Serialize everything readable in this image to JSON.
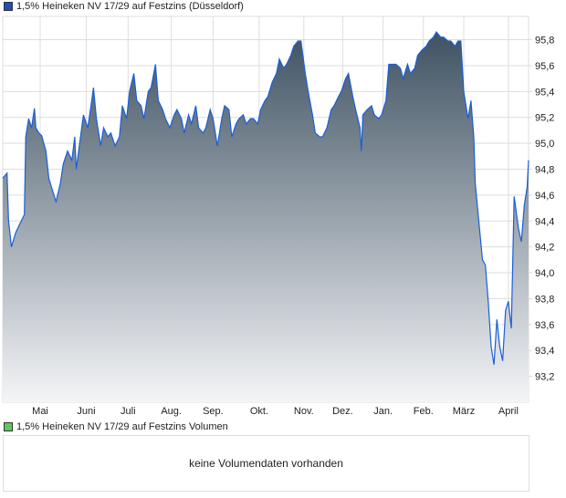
{
  "legend_main": {
    "label": "1,5% Heineken NV 17/29 auf Festzins (Düsseldorf)",
    "color": "#1f50b0"
  },
  "legend_volume": {
    "label": "1,5% Heineken NV 17/29 auf Festzins Volumen",
    "color": "#5cc85c"
  },
  "volume_message": "keine Volumendaten vorhanden",
  "colors": {
    "line": "#1a5fd8",
    "fill_top": "#3f5262",
    "fill_bottom": "#f4f5f7",
    "grid": "#dddddd"
  },
  "chart_data": {
    "type": "area",
    "title": "1,5% Heineken NV 17/29 auf Festzins (Düsseldorf)",
    "xlabel": "",
    "ylabel": "",
    "x_unit": "days since start",
    "xlim": [
      0,
      365
    ],
    "ylim": [
      93.0,
      95.98
    ],
    "grid": true,
    "y_ticks": [
      93.2,
      93.4,
      93.6,
      93.8,
      94.0,
      94.2,
      94.4,
      94.6,
      94.8,
      95.0,
      95.2,
      95.4,
      95.6,
      95.8
    ],
    "y_tick_labels": [
      "93,2",
      "93,4",
      "93,6",
      "93,8",
      "94,0",
      "94,2",
      "94,4",
      "94,6",
      "94,8",
      "95,0",
      "95,2",
      "95,4",
      "95,6",
      "95,8"
    ],
    "x_ticks": [
      {
        "label": "Mai",
        "day": 26
      },
      {
        "label": "Juni",
        "day": 58
      },
      {
        "label": "Juli",
        "day": 87
      },
      {
        "label": "Aug.",
        "day": 117
      },
      {
        "label": "Sep.",
        "day": 146
      },
      {
        "label": "Okt.",
        "day": 178
      },
      {
        "label": "Nov.",
        "day": 209
      },
      {
        "label": "Dez.",
        "day": 236
      },
      {
        "label": "Jan.",
        "day": 264
      },
      {
        "label": "Feb.",
        "day": 292
      },
      {
        "label": "März",
        "day": 320
      },
      {
        "label": "April",
        "day": 351
      }
    ],
    "points": [
      [
        0,
        94.73
      ],
      [
        3,
        94.77
      ],
      [
        4,
        94.41
      ],
      [
        6,
        94.2
      ],
      [
        9,
        94.31
      ],
      [
        12,
        94.38
      ],
      [
        15,
        94.45
      ],
      [
        16,
        95.05
      ],
      [
        18,
        95.19
      ],
      [
        20,
        95.12
      ],
      [
        22,
        95.27
      ],
      [
        23,
        95.12
      ],
      [
        25,
        95.08
      ],
      [
        27,
        95.06
      ],
      [
        30,
        94.94
      ],
      [
        32,
        94.73
      ],
      [
        35,
        94.62
      ],
      [
        37,
        94.55
      ],
      [
        40,
        94.69
      ],
      [
        42,
        94.84
      ],
      [
        45,
        94.94
      ],
      [
        48,
        94.87
      ],
      [
        50,
        95.05
      ],
      [
        51,
        94.8
      ],
      [
        54,
        95.05
      ],
      [
        56,
        95.22
      ],
      [
        59,
        95.12
      ],
      [
        61,
        95.27
      ],
      [
        63,
        95.43
      ],
      [
        65,
        95.19
      ],
      [
        68,
        94.98
      ],
      [
        70,
        95.12
      ],
      [
        73,
        95.05
      ],
      [
        75,
        95.08
      ],
      [
        78,
        94.98
      ],
      [
        81,
        95.05
      ],
      [
        83,
        95.29
      ],
      [
        86,
        95.19
      ],
      [
        88,
        95.4
      ],
      [
        91,
        95.54
      ],
      [
        93,
        95.33
      ],
      [
        96,
        95.29
      ],
      [
        98,
        95.19
      ],
      [
        101,
        95.4
      ],
      [
        103,
        95.43
      ],
      [
        106,
        95.61
      ],
      [
        108,
        95.33
      ],
      [
        111,
        95.26
      ],
      [
        113,
        95.19
      ],
      [
        116,
        95.12
      ],
      [
        119,
        95.22
      ],
      [
        121,
        95.26
      ],
      [
        124,
        95.19
      ],
      [
        126,
        95.08
      ],
      [
        129,
        95.22
      ],
      [
        131,
        95.15
      ],
      [
        134,
        95.29
      ],
      [
        136,
        95.12
      ],
      [
        139,
        95.08
      ],
      [
        141,
        95.12
      ],
      [
        144,
        95.26
      ],
      [
        146,
        95.19
      ],
      [
        149,
        94.98
      ],
      [
        152,
        95.19
      ],
      [
        154,
        95.29
      ],
      [
        157,
        95.26
      ],
      [
        159,
        95.05
      ],
      [
        162,
        95.15
      ],
      [
        164,
        95.19
      ],
      [
        167,
        95.22
      ],
      [
        169,
        95.15
      ],
      [
        172,
        95.19
      ],
      [
        174,
        95.19
      ],
      [
        177,
        95.15
      ],
      [
        179,
        95.26
      ],
      [
        182,
        95.33
      ],
      [
        184,
        95.36
      ],
      [
        187,
        95.47
      ],
      [
        190,
        95.54
      ],
      [
        192,
        95.65
      ],
      [
        195,
        95.58
      ],
      [
        197,
        95.61
      ],
      [
        200,
        95.68
      ],
      [
        202,
        95.75
      ],
      [
        205,
        95.79
      ],
      [
        207,
        95.79
      ],
      [
        210,
        95.54
      ],
      [
        212,
        95.4
      ],
      [
        215,
        95.22
      ],
      [
        217,
        95.08
      ],
      [
        220,
        95.05
      ],
      [
        222,
        95.05
      ],
      [
        225,
        95.12
      ],
      [
        228,
        95.26
      ],
      [
        230,
        95.29
      ],
      [
        233,
        95.36
      ],
      [
        235,
        95.4
      ],
      [
        238,
        95.5
      ],
      [
        240,
        95.54
      ],
      [
        243,
        95.36
      ],
      [
        245,
        95.26
      ],
      [
        248,
        95.12
      ],
      [
        249,
        94.94
      ],
      [
        250,
        95.22
      ],
      [
        253,
        95.26
      ],
      [
        256,
        95.29
      ],
      [
        258,
        95.22
      ],
      [
        261,
        95.19
      ],
      [
        263,
        95.22
      ],
      [
        266,
        95.33
      ],
      [
        268,
        95.61
      ],
      [
        271,
        95.61
      ],
      [
        273,
        95.61
      ],
      [
        276,
        95.58
      ],
      [
        278,
        95.5
      ],
      [
        281,
        95.61
      ],
      [
        283,
        95.54
      ],
      [
        286,
        95.58
      ],
      [
        288,
        95.68
      ],
      [
        291,
        95.72
      ],
      [
        294,
        95.75
      ],
      [
        296,
        95.79
      ],
      [
        299,
        95.82
      ],
      [
        301,
        95.86
      ],
      [
        304,
        95.82
      ],
      [
        306,
        95.82
      ],
      [
        309,
        95.79
      ],
      [
        311,
        95.79
      ],
      [
        314,
        95.75
      ],
      [
        316,
        95.79
      ],
      [
        318,
        95.79
      ],
      [
        320,
        95.4
      ],
      [
        323,
        95.19
      ],
      [
        325,
        95.33
      ],
      [
        327,
        95.05
      ],
      [
        328,
        94.69
      ],
      [
        330,
        94.45
      ],
      [
        333,
        94.1
      ],
      [
        335,
        94.06
      ],
      [
        337,
        93.78
      ],
      [
        339,
        93.43
      ],
      [
        341,
        93.29
      ],
      [
        343,
        93.64
      ],
      [
        345,
        93.43
      ],
      [
        347,
        93.32
      ],
      [
        349,
        93.71
      ],
      [
        351,
        93.78
      ],
      [
        353,
        93.57
      ],
      [
        355,
        94.59
      ],
      [
        358,
        94.34
      ],
      [
        360,
        94.24
      ],
      [
        362,
        94.52
      ],
      [
        364,
        94.66
      ],
      [
        365,
        94.87
      ]
    ]
  }
}
